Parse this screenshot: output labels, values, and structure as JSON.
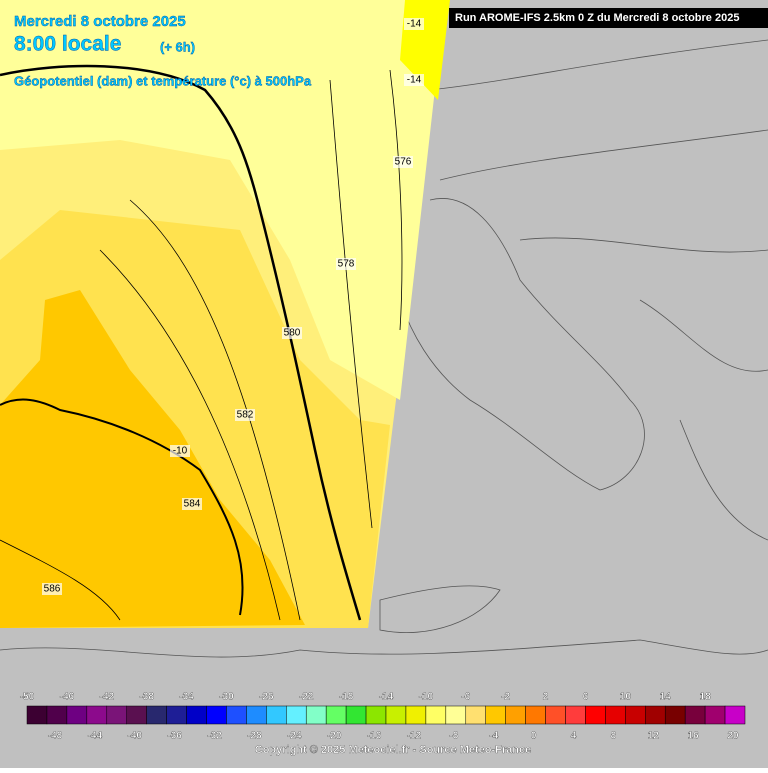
{
  "header": {
    "date": "Mercredi 8 octobre 2025",
    "time": "8:00 locale",
    "offset": "(+ 6h)",
    "field": "Géopotentiel (dam) et température (°c) à 500hPa",
    "run": "Run AROME-IFS 2.5km 0 Z du Mercredi 8 octobre 2025"
  },
  "contour_labels": [
    "-14",
    "-14",
    "576",
    "578",
    "580",
    "582",
    "-10",
    "584",
    "586"
  ],
  "legend": {
    "values": [
      -50,
      -48,
      -46,
      -44,
      -42,
      -40,
      -38,
      -36,
      -34,
      -32,
      -30,
      -28,
      -26,
      -24,
      -22,
      -20,
      -18,
      -16,
      -14,
      -12,
      -10,
      -8,
      -6,
      -4,
      -2,
      0,
      2,
      4,
      6,
      8,
      10,
      12,
      14,
      16,
      18,
      20
    ],
    "colors": [
      "#3c0032",
      "#50004b",
      "#6e0082",
      "#8c0a8c",
      "#7a1478",
      "#5a1050",
      "#28286e",
      "#1e1e96",
      "#0000c8",
      "#0000ff",
      "#1e50ff",
      "#1e8cff",
      "#32c8ff",
      "#64f0ff",
      "#82ffc8",
      "#64ff64",
      "#32e632",
      "#8ce600",
      "#c8f000",
      "#f0f000",
      "#ffff64",
      "#ffff96",
      "#ffe070",
      "#ffc800",
      "#ffa000",
      "#ff7800",
      "#ff5028",
      "#ff3c3c",
      "#ff0000",
      "#e60000",
      "#c80000",
      "#a00000",
      "#780000",
      "#78003c",
      "#a0006e",
      "#c800c8"
    ]
  },
  "copyright": "Copyright © 2025 Meteociel.fr - Source Meteo-France"
}
